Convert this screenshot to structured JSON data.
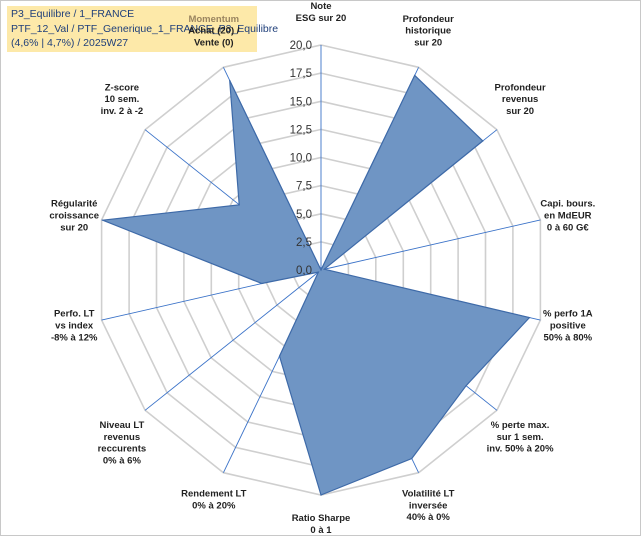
{
  "info": {
    "line1": "P3_Equilibre / 1_FRANCE",
    "line2": "PTF_12_Val / PTF_Generique_1_FRANCE_P3_Equilibre",
    "line3": "(4,6% | 4,7%) / 2025W27"
  },
  "colors": {
    "fill": "#6f95c4",
    "stroke": "#3e6aa8",
    "grid": "#cfcfcf",
    "spoke": "#3a72c8",
    "info_bg": "#fde9a9"
  },
  "chart_data": {
    "type": "radar",
    "rmin": 0,
    "rmax": 20,
    "ticks": [
      "0,0",
      "2,5",
      "5,0",
      "7,5",
      "10,0",
      "12,5",
      "15,0",
      "17,5",
      "20,0"
    ],
    "categories": [
      {
        "lines": [
          "Note",
          "ESG sur 20"
        ]
      },
      {
        "lines": [
          "Profondeur",
          "historique",
          "sur 20"
        ]
      },
      {
        "lines": [
          "Profondeur",
          "revenus",
          "sur 20"
        ]
      },
      {
        "lines": [
          "Capi. bours.",
          "en MdEUR",
          "0 à 60 G€"
        ]
      },
      {
        "lines": [
          "% perfo 1A",
          "positive",
          "50% à 80%"
        ]
      },
      {
        "lines": [
          "% perte max.",
          "sur 1 sem.",
          "inv. 50% à 20%"
        ]
      },
      {
        "lines": [
          "Volatilité LT",
          "inversée",
          "40% à 0%"
        ]
      },
      {
        "lines": [
          "Ratio Sharpe",
          "0 à 1"
        ]
      },
      {
        "lines": [
          "Rendement LT",
          "0% à 20%"
        ]
      },
      {
        "lines": [
          "Niveau LT",
          "revenus",
          "reccurents",
          "0% à 6%"
        ]
      },
      {
        "lines": [
          "Perfo. LT",
          "vs index",
          "-8% à 12%"
        ]
      },
      {
        "lines": [
          "Régularité",
          "croissance",
          "sur 20"
        ]
      },
      {
        "lines": [
          "Z-score",
          "10 sem.",
          "inv. 2 à -2"
        ]
      },
      {
        "lines": [
          "Momentum",
          "Achat (20) /",
          "Vente (0)"
        ],
        "highlight_first": true
      }
    ],
    "values": [
      0,
      19.2,
      18.4,
      0.3,
      19.0,
      16.5,
      18.6,
      20.0,
      8.5,
      0.3,
      5.4,
      19.9,
      9.3,
      18.7
    ]
  }
}
